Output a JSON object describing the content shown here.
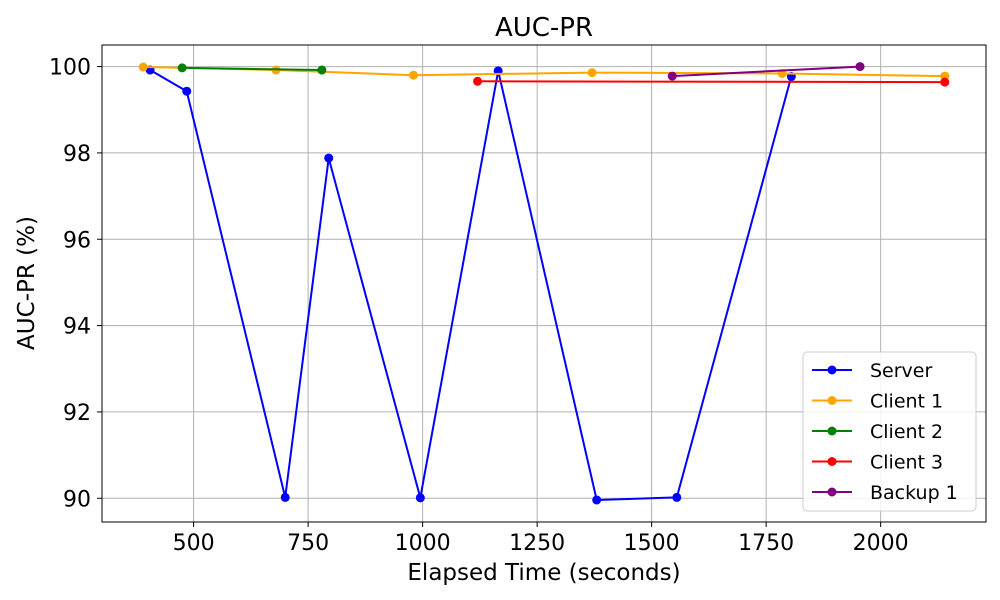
{
  "chart_data": {
    "type": "line",
    "title": "AUC-PR",
    "xlabel": "Elapsed Time (seconds)",
    "ylabel": "AUC-PR (%)",
    "xlim": [
      300,
      2230
    ],
    "ylim": [
      89.45,
      100.5
    ],
    "xticks": [
      500,
      750,
      1000,
      1250,
      1500,
      1750,
      2000
    ],
    "yticks": [
      90,
      92,
      94,
      96,
      98,
      100
    ],
    "grid": true,
    "legend_position": "lower right",
    "series": [
      {
        "name": "Server",
        "color": "#0000ff",
        "x": [
          405,
          485,
          700,
          795,
          995,
          1165,
          1380,
          1555,
          1805
        ],
        "y": [
          99.92,
          99.43,
          90.02,
          97.88,
          90.01,
          99.9,
          89.96,
          90.02,
          99.77
        ]
      },
      {
        "name": "Client 1",
        "color": "#ffa500",
        "x": [
          390,
          680,
          980,
          1370,
          1785,
          2140
        ],
        "y": [
          99.99,
          99.92,
          99.8,
          99.86,
          99.84,
          99.78
        ]
      },
      {
        "name": "Client 2",
        "color": "#008000",
        "x": [
          475,
          780
        ],
        "y": [
          99.97,
          99.92
        ]
      },
      {
        "name": "Client 3",
        "color": "#ff0000",
        "x": [
          1120,
          2140
        ],
        "y": [
          99.66,
          99.64
        ]
      },
      {
        "name": "Backup 1",
        "color": "#800080",
        "x": [
          1545,
          1955
        ],
        "y": [
          99.78,
          100.0
        ]
      }
    ]
  }
}
